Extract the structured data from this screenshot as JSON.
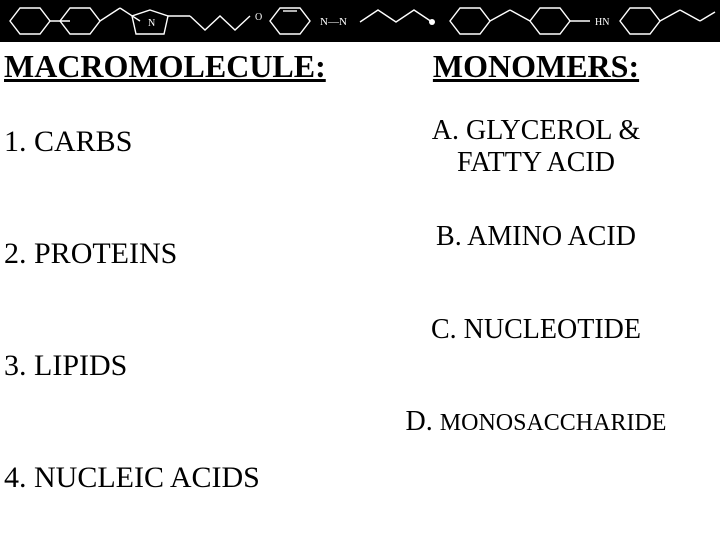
{
  "banner": {
    "background": "#000000",
    "stroke": "#ffffff",
    "height": 42
  },
  "left": {
    "header": "MACROMOLECULE:",
    "items": [
      "1. CARBS",
      "2. PROTEINS",
      "3. LIPIDS",
      "4. NUCLEIC ACIDS"
    ]
  },
  "right": {
    "header": "MONOMERS:",
    "items": [
      {
        "text": "A. GLYCEROL &\nFATTY ACID",
        "twoLine": true
      },
      {
        "text": "B. AMINO ACID",
        "twoLine": false
      },
      {
        "text": "C. NUCLEOTIDE",
        "twoLine": false
      },
      {
        "prefix": "D. ",
        "text": "MONOSACCHARIDE",
        "small": true
      }
    ]
  },
  "colors": {
    "text": "#000000",
    "background": "#ffffff"
  },
  "typography": {
    "family": "Times New Roman",
    "header_size": 32,
    "item_size": 30,
    "right_item_size": 28,
    "small_size": 24
  }
}
